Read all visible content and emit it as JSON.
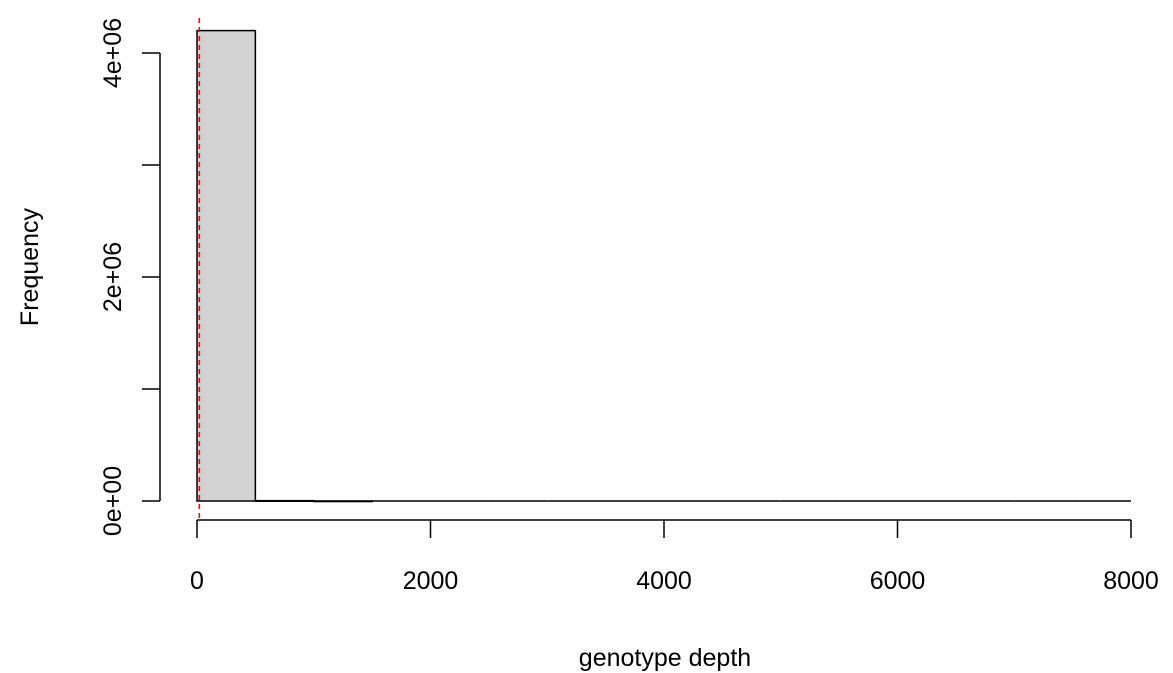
{
  "chart_data": {
    "type": "bar",
    "title": "",
    "xlabel": "genotype depth",
    "ylabel": "Frequency",
    "xlim": [
      0,
      8000
    ],
    "ylim": [
      0,
      4000000
    ],
    "bin_width": 500,
    "bins": [
      {
        "start": 0,
        "end": 500,
        "count": 4200000
      },
      {
        "start": 500,
        "end": 1000,
        "count": 3000
      },
      {
        "start": 1000,
        "end": 1500,
        "count": 500
      },
      {
        "start": 1500,
        "end": 2000,
        "count": 0
      },
      {
        "start": 2000,
        "end": 2500,
        "count": 0
      },
      {
        "start": 2500,
        "end": 3000,
        "count": 0
      },
      {
        "start": 3000,
        "end": 3500,
        "count": 0
      },
      {
        "start": 3500,
        "end": 4000,
        "count": 0
      },
      {
        "start": 4000,
        "end": 4500,
        "count": 0
      },
      {
        "start": 4500,
        "end": 5000,
        "count": 0
      },
      {
        "start": 5000,
        "end": 5500,
        "count": 0
      },
      {
        "start": 5500,
        "end": 6000,
        "count": 0
      },
      {
        "start": 6000,
        "end": 6500,
        "count": 0
      },
      {
        "start": 6500,
        "end": 7000,
        "count": 0
      },
      {
        "start": 7000,
        "end": 7500,
        "count": 0
      },
      {
        "start": 7500,
        "end": 8000,
        "count": 0
      }
    ],
    "x_ticks": [
      0,
      2000,
      4000,
      6000,
      8000
    ],
    "x_tick_labels": [
      "0",
      "2000",
      "4000",
      "6000",
      "8000"
    ],
    "y_ticks": [
      0,
      1000000,
      2000000,
      3000000,
      4000000
    ],
    "y_tick_labels": [
      "0e+00",
      "",
      "2e+06",
      "",
      "4e+06"
    ],
    "reference_line": {
      "x": 20,
      "color": "#ff0000",
      "style": "dashed"
    },
    "bar_fill": "#d3d3d3",
    "bar_stroke": "#000000",
    "grid": false
  }
}
